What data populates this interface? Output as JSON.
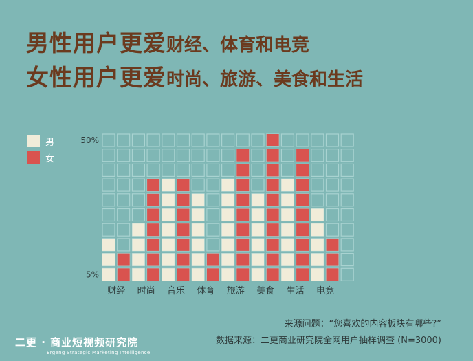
{
  "headline": {
    "line1_strong": "男性用户更爱",
    "line1_rest": "财经、体育和电竞",
    "line2_strong": "女性用户更爱",
    "line2_rest": "时尚、旅游、美食和生活"
  },
  "legend": {
    "male": "男",
    "female": "女"
  },
  "colors": {
    "background": "#7fb7b5",
    "male": "#f1ecd9",
    "female": "#d9534f",
    "empty_border": "#a9d3d1",
    "headline": "#6b3a1e"
  },
  "chart_data": {
    "type": "bar",
    "categories": [
      "财经",
      "时尚",
      "音乐",
      "体育",
      "旅游",
      "美食",
      "生活",
      "电竞"
    ],
    "series": [
      {
        "name": "男",
        "values": [
          15,
          20,
          35,
          30,
          35,
          30,
          35,
          25
        ]
      },
      {
        "name": "女",
        "values": [
          10,
          35,
          35,
          10,
          45,
          50,
          45,
          15
        ]
      }
    ],
    "ylim": [
      5,
      50
    ],
    "y_tick_labels": [
      "50%",
      "5%"
    ],
    "unit_per_cell": 5
  },
  "footer": {
    "source_question": "来源问题：“您喜欢的内容板块有哪些?”",
    "data_source": "数据来源：二更商业研究院全网用户抽样调查 (N=3000)"
  },
  "brand": {
    "name": "二更 · 商业短视频研究院",
    "subtitle": "Ergeng Strategic Marketing Intelligence"
  }
}
